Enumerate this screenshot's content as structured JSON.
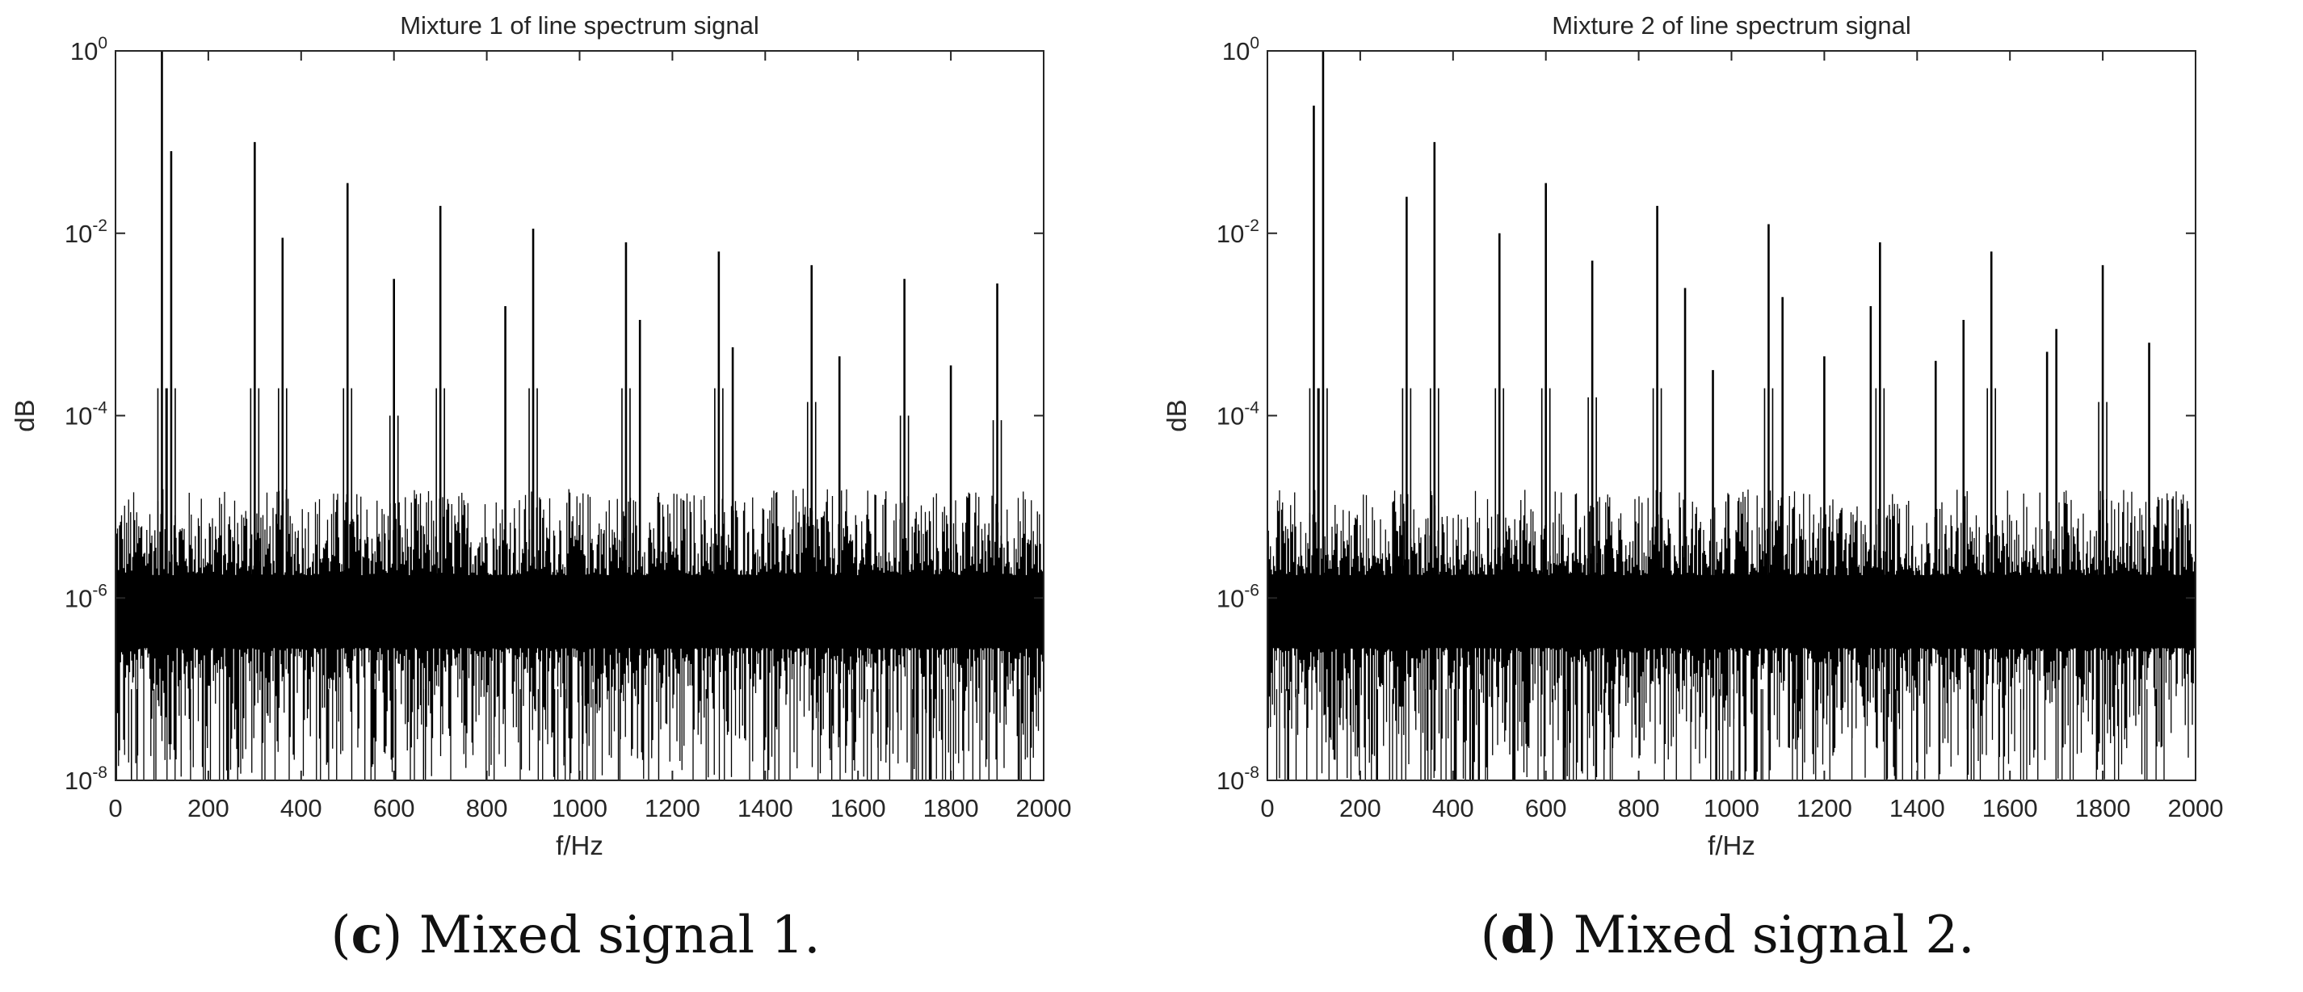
{
  "chart_data": [
    {
      "type": "line",
      "title": "Mixture 1 of line spectrum signal",
      "xlabel": "f/Hz",
      "ylabel": "dB",
      "xlim": [
        0,
        2000
      ],
      "yscale": "log",
      "ylim_exponent": [
        -8,
        0
      ],
      "x_ticks": [
        "0",
        "200",
        "400",
        "600",
        "800",
        "1000",
        "1200",
        "1400",
        "1600",
        "1800",
        "2000"
      ],
      "y_ticks": [
        {
          "base": "10",
          "exp": "0",
          "value": 0
        },
        {
          "base": "10",
          "exp": "-2",
          "value": -2
        },
        {
          "base": "10",
          "exp": "-4",
          "value": -4
        },
        {
          "base": "10",
          "exp": "-6",
          "value": -6
        },
        {
          "base": "10",
          "exp": "-8",
          "value": -8
        }
      ],
      "noise_floor_exponent": -6,
      "line_color": "#000000",
      "peaks": [
        {
          "f": 100,
          "exp": 0
        },
        {
          "f": 120,
          "exp": -1.1
        },
        {
          "f": 300,
          "exp": -1.0
        },
        {
          "f": 360,
          "exp": -2.05
        },
        {
          "f": 500,
          "exp": -1.45
        },
        {
          "f": 600,
          "exp": -2.5
        },
        {
          "f": 700,
          "exp": -1.7
        },
        {
          "f": 840,
          "exp": -2.8
        },
        {
          "f": 900,
          "exp": -1.95
        },
        {
          "f": 1100,
          "exp": -2.1
        },
        {
          "f": 1130,
          "exp": -2.95
        },
        {
          "f": 1300,
          "exp": -2.2
        },
        {
          "f": 1330,
          "exp": -3.25
        },
        {
          "f": 1500,
          "exp": -2.35
        },
        {
          "f": 1560,
          "exp": -3.35
        },
        {
          "f": 1700,
          "exp": -2.5
        },
        {
          "f": 1800,
          "exp": -3.45
        },
        {
          "f": 1900,
          "exp": -2.55
        }
      ]
    },
    {
      "type": "line",
      "title": "Mixture 2 of line spectrum signal",
      "xlabel": "f/Hz",
      "ylabel": "dB",
      "xlim": [
        0,
        2000
      ],
      "yscale": "log",
      "ylim_exponent": [
        -8,
        0
      ],
      "x_ticks": [
        "0",
        "200",
        "400",
        "600",
        "800",
        "1000",
        "1200",
        "1400",
        "1600",
        "1800",
        "2000"
      ],
      "y_ticks": [
        {
          "base": "10",
          "exp": "0",
          "value": 0
        },
        {
          "base": "10",
          "exp": "-2",
          "value": -2
        },
        {
          "base": "10",
          "exp": "-4",
          "value": -4
        },
        {
          "base": "10",
          "exp": "-6",
          "value": -6
        },
        {
          "base": "10",
          "exp": "-8",
          "value": -8
        }
      ],
      "noise_floor_exponent": -6,
      "line_color": "#000000",
      "peaks": [
        {
          "f": 100,
          "exp": -0.6
        },
        {
          "f": 120,
          "exp": 0
        },
        {
          "f": 300,
          "exp": -1.6
        },
        {
          "f": 360,
          "exp": -1.0
        },
        {
          "f": 500,
          "exp": -2.0
        },
        {
          "f": 600,
          "exp": -1.45
        },
        {
          "f": 700,
          "exp": -2.3
        },
        {
          "f": 840,
          "exp": -1.7
        },
        {
          "f": 900,
          "exp": -2.6
        },
        {
          "f": 960,
          "exp": -3.5
        },
        {
          "f": 1080,
          "exp": -1.9
        },
        {
          "f": 1110,
          "exp": -2.7
        },
        {
          "f": 1200,
          "exp": -3.35
        },
        {
          "f": 1300,
          "exp": -2.8
        },
        {
          "f": 1320,
          "exp": -2.1
        },
        {
          "f": 1440,
          "exp": -3.4
        },
        {
          "f": 1500,
          "exp": -2.95
        },
        {
          "f": 1560,
          "exp": -2.2
        },
        {
          "f": 1680,
          "exp": -3.3
        },
        {
          "f": 1700,
          "exp": -3.05
        },
        {
          "f": 1800,
          "exp": -2.35
        },
        {
          "f": 1900,
          "exp": -3.2
        }
      ]
    }
  ],
  "captions": [
    {
      "letter": "c",
      "text": " Mixed signal 1."
    },
    {
      "letter": "d",
      "text": " Mixed signal 2."
    }
  ]
}
